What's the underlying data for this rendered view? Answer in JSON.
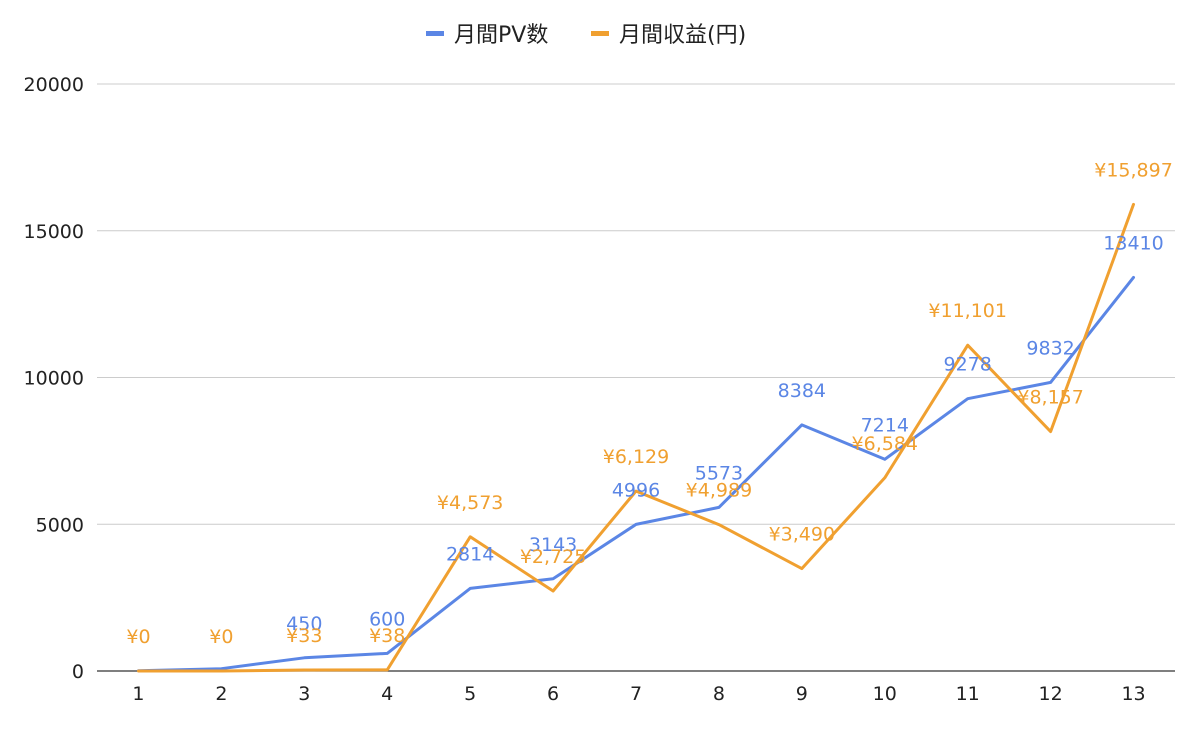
{
  "chart_data": {
    "type": "line",
    "title": "",
    "xlabel": "",
    "ylabel": "",
    "x": [
      "1",
      "2",
      "3",
      "4",
      "5",
      "6",
      "7",
      "8",
      "9",
      "10",
      "11",
      "12",
      "13"
    ],
    "ylim": [
      0,
      20000
    ],
    "yticks": [
      "0",
      "5000",
      "10000",
      "15000",
      "20000"
    ],
    "grid": true,
    "legend_position": "top",
    "series": [
      {
        "name": "月間PV数",
        "color": "#5b86e5",
        "values": [
          10,
          80,
          450,
          600,
          2814,
          3143,
          4996,
          5573,
          8384,
          7214,
          9278,
          9832,
          13410
        ],
        "labels": [
          "",
          "",
          "450",
          "600",
          "2814",
          "3143",
          "4996",
          "5573",
          "8384",
          "7214",
          "9278",
          "9832",
          "13410"
        ]
      },
      {
        "name": "月間収益(円)",
        "color": "#f0a030",
        "values": [
          0,
          0,
          33,
          38,
          4573,
          2725,
          6129,
          4989,
          3490,
          6584,
          11101,
          8157,
          15897
        ],
        "labels": [
          "¥0",
          "¥0",
          "¥33",
          "¥38",
          "¥4,573",
          "¥2,725",
          "¥6,129",
          "¥4,989",
          "¥3,490",
          "¥6,584",
          "¥11,101",
          "¥8,157",
          "¥15,897"
        ]
      }
    ]
  }
}
